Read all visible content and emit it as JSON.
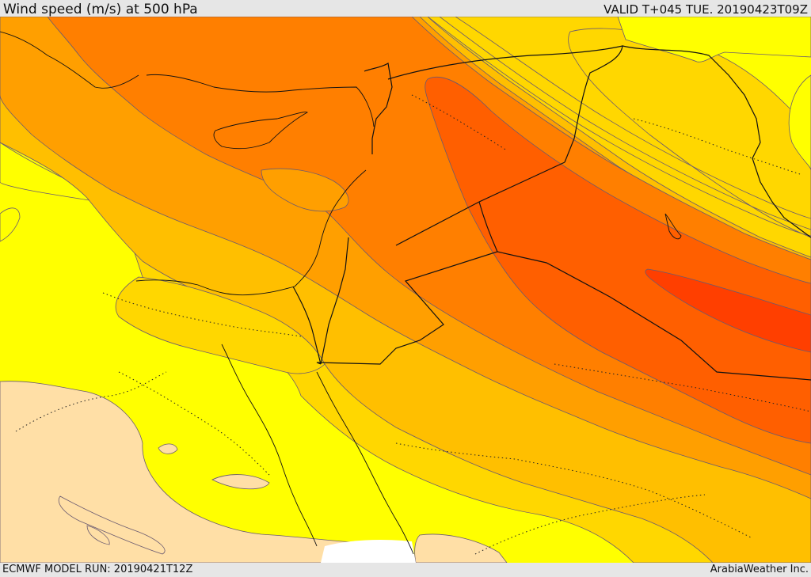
{
  "header": {
    "title": "Wind speed (m/s) at 500 hPa",
    "valid_time": "VALID T+045 TUE. 20190423T09Z"
  },
  "footer": {
    "model_run": "ECMWF MODEL RUN: 20190421T12Z",
    "credit": "ArabiaWeather Inc."
  },
  "map": {
    "variable": "wind speed",
    "level": "500 hPa",
    "palette": {
      "band_1": "#ffdfa6",
      "band_2": "#ffff00",
      "band_3": "#ffd700",
      "band_4": "#ffbf00",
      "band_5": "#ff9f00",
      "band_6": "#ff7f00",
      "band_7": "#ff5f00",
      "band_8": "#ff3f00",
      "no_data": "#ffffff"
    }
  }
}
